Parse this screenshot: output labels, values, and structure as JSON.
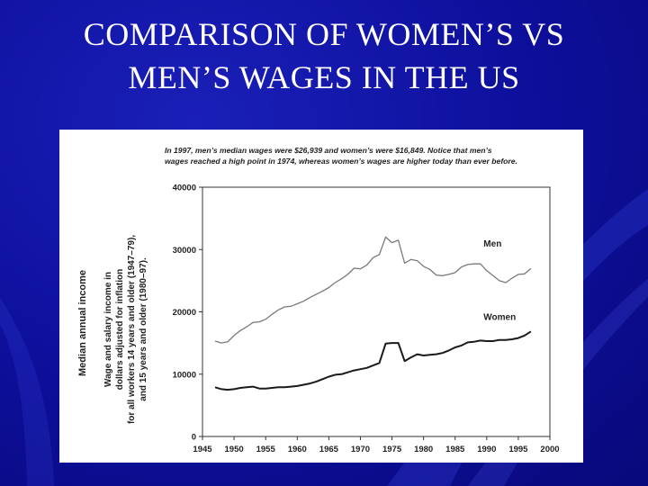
{
  "slide": {
    "title_line1": "COMPARISON OF WOMEN’S VS",
    "title_line2": "MEN’S WAGES IN THE US"
  },
  "colors": {
    "background": "#0d0f9a",
    "title": "#ffffff",
    "men_line": "#7a7a7a",
    "women_line": "#1a1a1a"
  },
  "chart_data": {
    "type": "line",
    "note_line1": "In 1997, men’s median wages were $26,939 and women’s were $16,849. Notice that men’s",
    "note_line2": "wages reached a high point in 1974, whereas women’s wages are higher today than ever before.",
    "ylabel": "Median annual income",
    "ylabel_sub": [
      "Wage and salary income in",
      "dollars adjusted for inflation",
      "for all workers 14 years and older (1947–79),",
      "and 15 years and older (1980–97)."
    ],
    "xlim": [
      1945,
      2000
    ],
    "ylim": [
      0,
      40000
    ],
    "x_ticks": [
      1945,
      1950,
      1955,
      1960,
      1965,
      1970,
      1975,
      1980,
      1985,
      1990,
      1995,
      2000
    ],
    "y_ticks": [
      0,
      10000,
      20000,
      30000,
      40000
    ],
    "grid": false,
    "series": [
      {
        "name": "Men",
        "x": [
          1947,
          1948,
          1949,
          1950,
          1951,
          1952,
          1953,
          1954,
          1955,
          1956,
          1957,
          1958,
          1959,
          1960,
          1961,
          1962,
          1963,
          1964,
          1965,
          1966,
          1967,
          1968,
          1969,
          1970,
          1971,
          1972,
          1973,
          1974,
          1975,
          1976,
          1977,
          1978,
          1979,
          1980,
          1981,
          1982,
          1983,
          1984,
          1985,
          1986,
          1987,
          1988,
          1989,
          1990,
          1991,
          1992,
          1993,
          1994,
          1995,
          1996,
          1997
        ],
        "values": [
          15300,
          15000,
          15200,
          16200,
          17000,
          17600,
          18300,
          18400,
          18800,
          19600,
          20300,
          20800,
          20900,
          21300,
          21700,
          22300,
          22800,
          23300,
          23900,
          24700,
          25300,
          26000,
          27000,
          26900,
          27500,
          28700,
          29200,
          32000,
          31100,
          31500,
          27800,
          28400,
          28200,
          27300,
          26800,
          25900,
          25800,
          26000,
          26300,
          27200,
          27600,
          27700,
          27700,
          26600,
          25800,
          25000,
          24700,
          25400,
          26000,
          26100,
          26939
        ]
      },
      {
        "name": "Women",
        "x": [
          1947,
          1948,
          1949,
          1950,
          1951,
          1952,
          1953,
          1954,
          1955,
          1956,
          1957,
          1958,
          1959,
          1960,
          1961,
          1962,
          1963,
          1964,
          1965,
          1966,
          1967,
          1968,
          1969,
          1970,
          1971,
          1972,
          1973,
          1974,
          1975,
          1976,
          1977,
          1978,
          1979,
          1980,
          1981,
          1982,
          1983,
          1984,
          1985,
          1986,
          1987,
          1988,
          1989,
          1990,
          1991,
          1992,
          1993,
          1994,
          1995,
          1996,
          1997
        ],
        "values": [
          7900,
          7600,
          7500,
          7600,
          7800,
          7900,
          8000,
          7700,
          7700,
          7800,
          7900,
          7900,
          8000,
          8100,
          8300,
          8500,
          8800,
          9200,
          9600,
          9900,
          10000,
          10300,
          10600,
          10800,
          11000,
          11400,
          11800,
          14900,
          15000,
          15000,
          12100,
          12700,
          13200,
          13000,
          13100,
          13200,
          13400,
          13800,
          14300,
          14600,
          15100,
          15200,
          15400,
          15300,
          15300,
          15500,
          15500,
          15600,
          15800,
          16200,
          16849
        ]
      }
    ]
  }
}
